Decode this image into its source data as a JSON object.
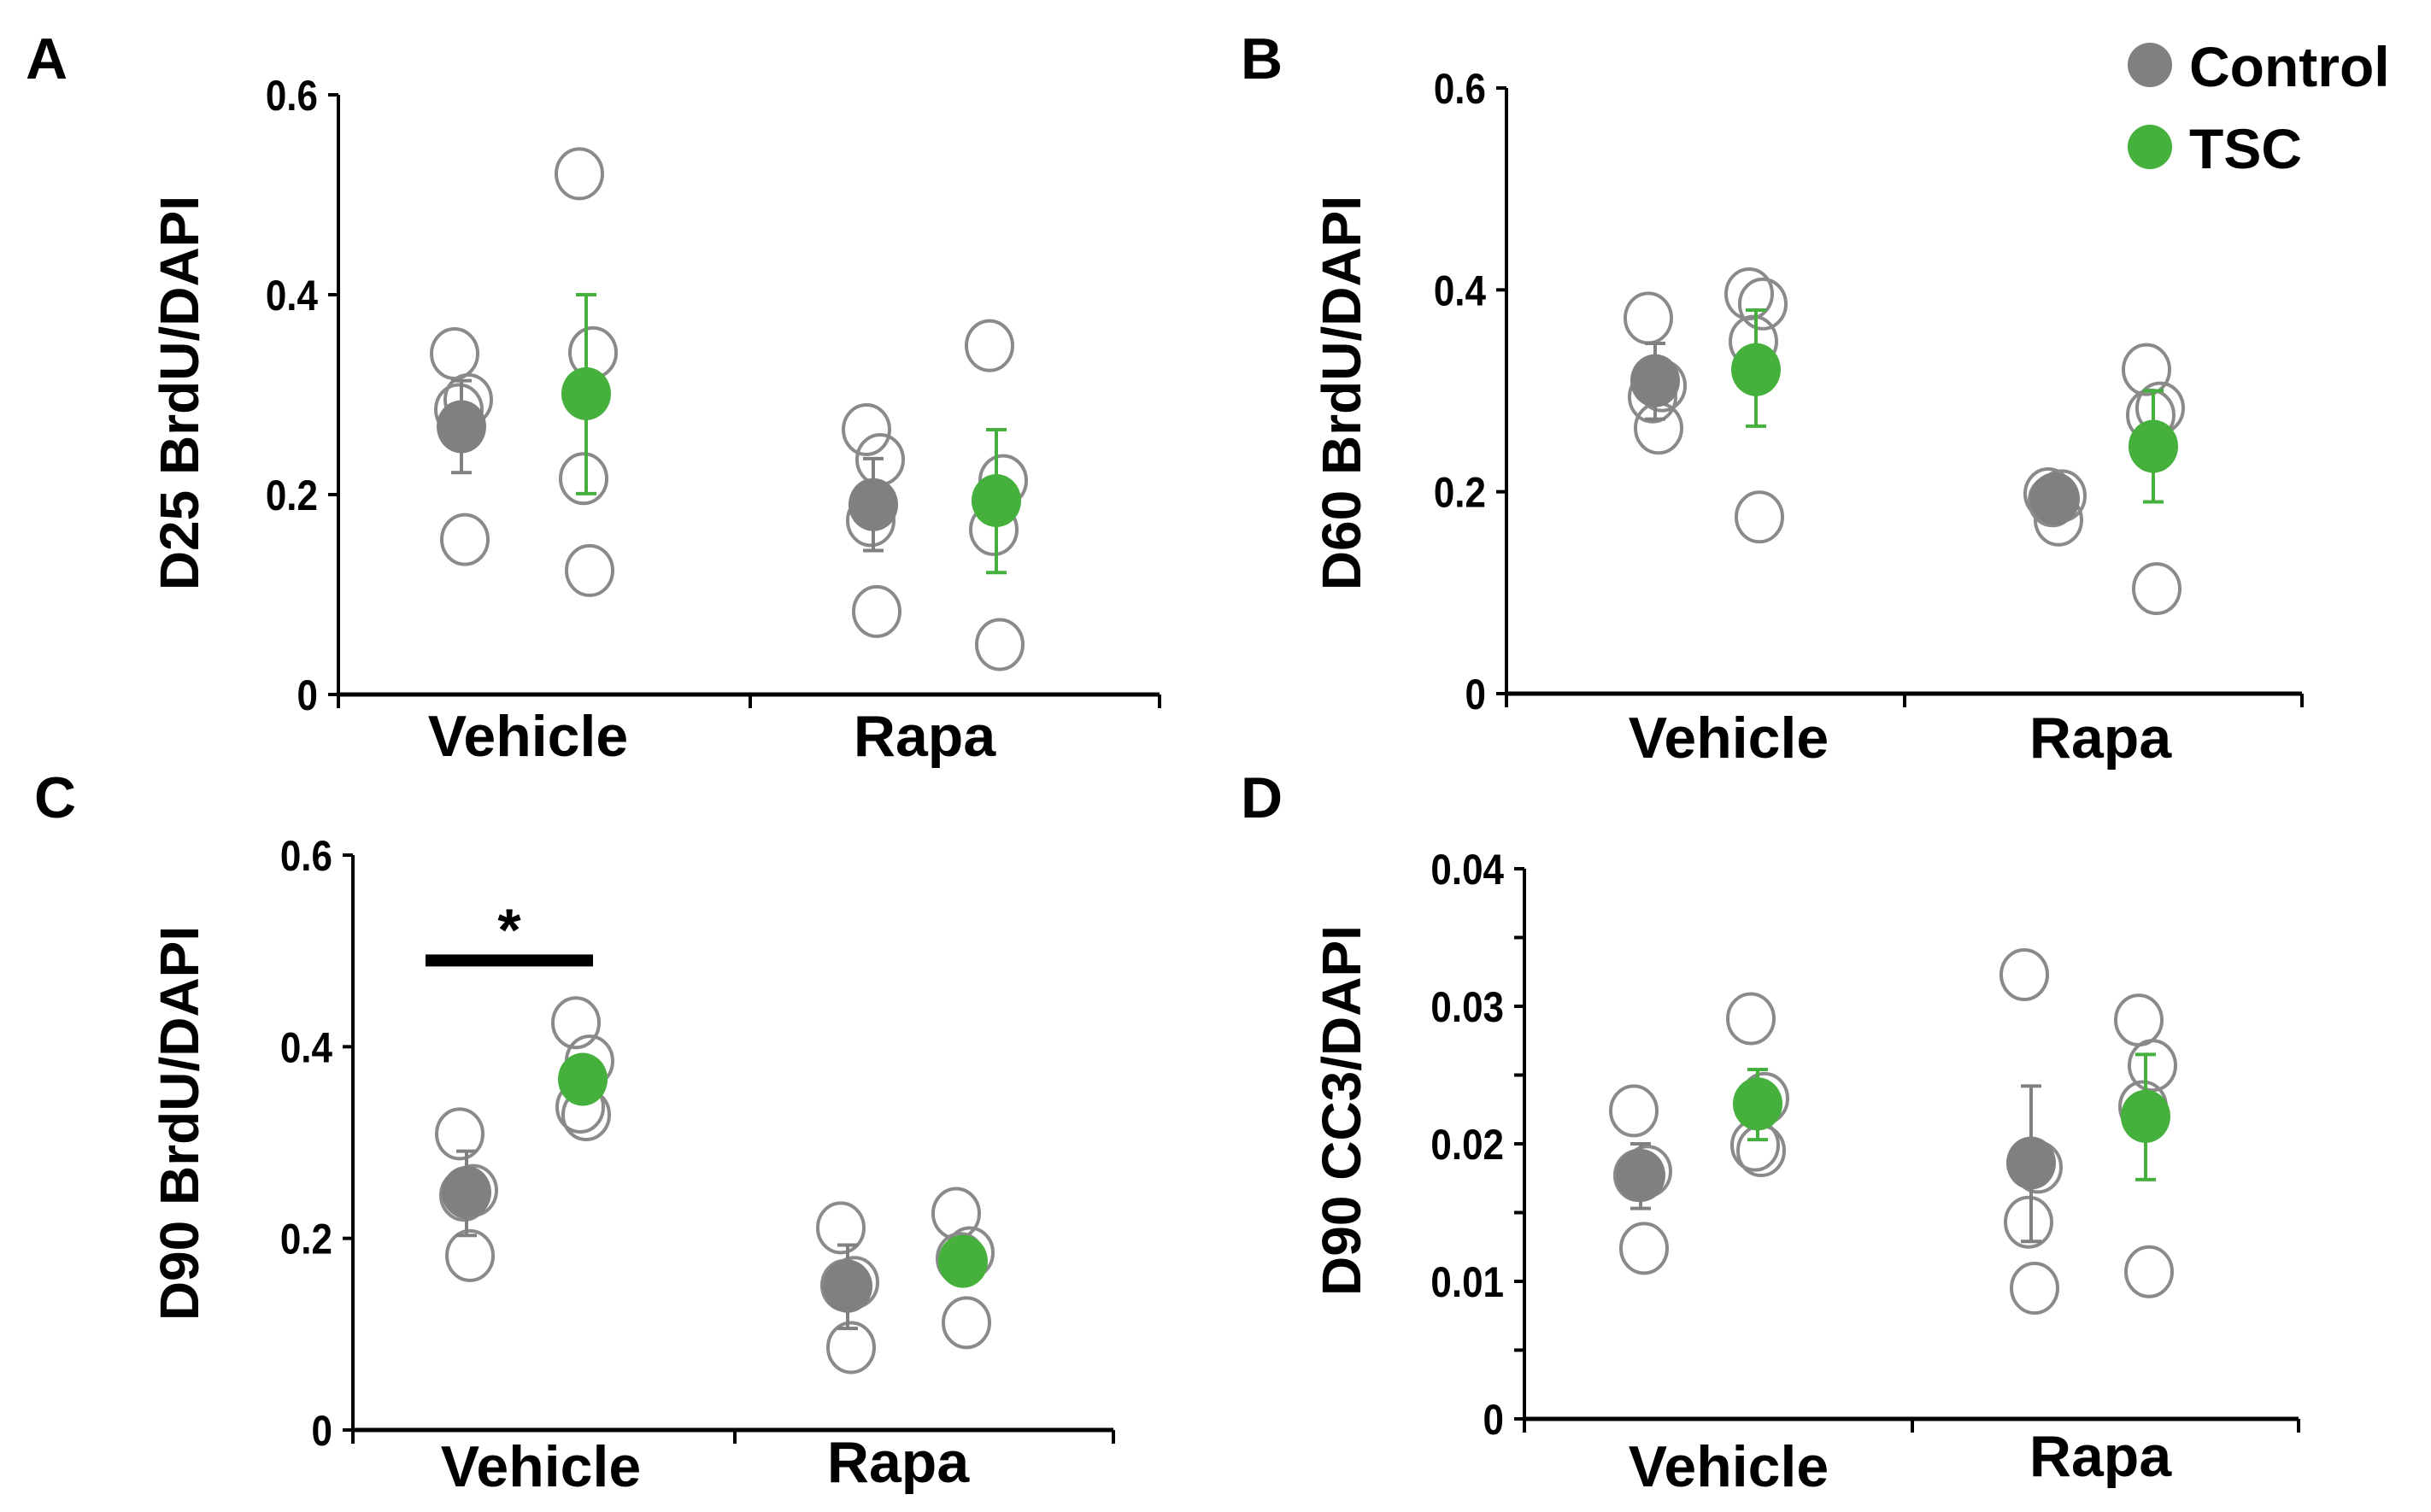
{
  "colors": {
    "control": "#808080",
    "tsc": "#45b03c",
    "open_marker": "#8a8a8a",
    "axis": "#000000"
  },
  "legend": {
    "entries": [
      {
        "label": "Control",
        "color": "#808080"
      },
      {
        "label": "TSC",
        "color": "#45b03c"
      }
    ],
    "placement": "top-right"
  },
  "chart_data": [
    {
      "panel": "A",
      "type": "scatter",
      "ylabel": "D25 BrdU/DAPI",
      "ylim": [
        0,
        0.6
      ],
      "yticks": [
        0,
        0.2,
        0.4,
        0.6
      ],
      "ytick_labels": [
        "0",
        "0.2",
        "0.4",
        "0.6"
      ],
      "minor_yticks": [],
      "categories": [
        "Vehicle",
        "Rapa"
      ],
      "groups": [
        {
          "category": "Vehicle",
          "series": "Control",
          "mean": 0.268,
          "error": [
            0.222,
            0.314
          ],
          "points": [
            0.341,
            0.295,
            0.285,
            0.155
          ]
        },
        {
          "category": "Vehicle",
          "series": "TSC",
          "mean": 0.301,
          "error": [
            0.201,
            0.4
          ],
          "points": [
            0.521,
            0.342,
            0.216,
            0.124
          ]
        },
        {
          "category": "Rapa",
          "series": "Control",
          "mean": 0.19,
          "error": [
            0.144,
            0.236
          ],
          "points": [
            0.265,
            0.235,
            0.174,
            0.083
          ]
        },
        {
          "category": "Rapa",
          "series": "TSC",
          "mean": 0.194,
          "error": [
            0.122,
            0.265
          ],
          "points": [
            0.349,
            0.214,
            0.165,
            0.05
          ]
        }
      ],
      "annotations": []
    },
    {
      "panel": "B",
      "type": "scatter",
      "ylabel": "D60 BrdU/DAPI",
      "ylim": [
        0,
        0.6
      ],
      "yticks": [
        0,
        0.2,
        0.4,
        0.6
      ],
      "ytick_labels": [
        "0",
        "0.2",
        "0.4",
        "0.6"
      ],
      "minor_yticks": [],
      "categories": [
        "Vehicle",
        "Rapa"
      ],
      "groups": [
        {
          "category": "Vehicle",
          "series": "Control",
          "mean": 0.31,
          "error": [
            0.272,
            0.347
          ],
          "points": [
            0.372,
            0.305,
            0.294,
            0.263
          ]
        },
        {
          "category": "Vehicle",
          "series": "TSC",
          "mean": 0.321,
          "error": [
            0.265,
            0.38
          ],
          "points": [
            0.396,
            0.386,
            0.349,
            0.175
          ]
        },
        {
          "category": "Rapa",
          "series": "Control",
          "mean": 0.193,
          "error": [
            0.186,
            0.2
          ],
          "points": [
            0.198,
            0.196,
            0.191,
            0.172
          ]
        },
        {
          "category": "Rapa",
          "series": "TSC",
          "mean": 0.245,
          "error": [
            0.19,
            0.3
          ],
          "points": [
            0.321,
            0.283,
            0.276,
            0.104
          ]
        }
      ],
      "annotations": []
    },
    {
      "panel": "C",
      "type": "scatter",
      "ylabel": "D90 BrdU/DAPI",
      "ylim": [
        0,
        0.6
      ],
      "yticks": [
        0,
        0.2,
        0.4,
        0.6
      ],
      "ytick_labels": [
        "0",
        "0.2",
        "0.4",
        "0.6"
      ],
      "minor_yticks": [],
      "categories": [
        "Vehicle",
        "Rapa"
      ],
      "groups": [
        {
          "category": "Vehicle",
          "series": "Control",
          "mean": 0.248,
          "error": [
            0.203,
            0.291
          ],
          "points": [
            0.309,
            0.25,
            0.245,
            0.182
          ]
        },
        {
          "category": "Vehicle",
          "series": "TSC",
          "mean": 0.366,
          "error": [
            0.352,
            0.38
          ],
          "points": [
            0.425,
            0.385,
            0.337,
            0.329
          ]
        },
        {
          "category": "Rapa",
          "series": "Control",
          "mean": 0.15,
          "error": [
            0.106,
            0.193
          ],
          "points": [
            0.211,
            0.154,
            0.151,
            0.086
          ]
        },
        {
          "category": "Rapa",
          "series": "TSC",
          "mean": 0.176,
          "error": [
            0.163,
            0.189
          ],
          "points": [
            0.226,
            0.185,
            0.179,
            0.112
          ]
        }
      ],
      "annotations": [
        {
          "type": "significance",
          "label": "*",
          "between": [
            "Vehicle Control",
            "Vehicle TSC"
          ],
          "y": 0.49
        }
      ]
    },
    {
      "panel": "D",
      "type": "scatter",
      "ylabel": "D90 CC3/DAPI",
      "ylim": [
        0,
        0.04
      ],
      "yticks": [
        0,
        0.01,
        0.02,
        0.03,
        0.04
      ],
      "ytick_labels": [
        "0",
        "0.01",
        "0.02",
        "0.03",
        "0.04"
      ],
      "minor_yticks": [
        0.005,
        0.015,
        0.025,
        0.035
      ],
      "categories": [
        "Vehicle",
        "Rapa"
      ],
      "groups": [
        {
          "category": "Vehicle",
          "series": "Control",
          "mean": 0.0177,
          "error": [
            0.0153,
            0.02
          ],
          "points": [
            0.0224,
            0.018,
            0.0177,
            0.0124
          ]
        },
        {
          "category": "Vehicle",
          "series": "TSC",
          "mean": 0.0229,
          "error": [
            0.0203,
            0.0254
          ],
          "points": [
            0.0291,
            0.0233,
            0.0199,
            0.0195
          ]
        },
        {
          "category": "Rapa",
          "series": "Control",
          "mean": 0.0186,
          "error": [
            0.0129,
            0.0242
          ],
          "points": [
            0.0323,
            0.0183,
            0.0143,
            0.0095
          ]
        },
        {
          "category": "Rapa",
          "series": "TSC",
          "mean": 0.022,
          "error": [
            0.0174,
            0.0265
          ],
          "points": [
            0.029,
            0.0257,
            0.0227,
            0.0107
          ]
        }
      ],
      "annotations": []
    }
  ]
}
